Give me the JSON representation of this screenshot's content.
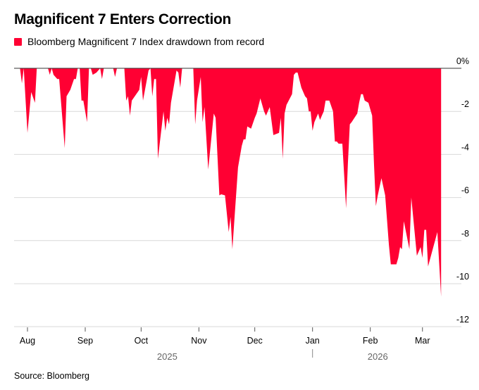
{
  "title": "Magnificent 7 Enters Correction",
  "legend_label": "Bloomberg Magnificent 7 Index drawdown from record",
  "source": "Source: Bloomberg",
  "colors": {
    "series": "#ff0033",
    "grid": "#d9d9d9",
    "zero_line": "#333333"
  },
  "chart_data": {
    "type": "area",
    "title": "Magnificent 7 Enters Correction",
    "series": [
      {
        "name": "Bloomberg Magnificent 7 Index drawdown from record",
        "color": "#ff0033"
      }
    ],
    "y_axis": {
      "position": "right",
      "range": [
        -12,
        0
      ],
      "ticks": [
        0,
        -2,
        -4,
        -6,
        -8,
        -10,
        -12
      ],
      "tick_labels": [
        "0%",
        "-2",
        "-4",
        "-6",
        "-8",
        "-10",
        "-12"
      ],
      "grid": true
    },
    "x_axis": {
      "type": "date",
      "range": [
        "2025-07-26",
        "2026-03-11"
      ],
      "ticks": [
        "2025-08-01",
        "2025-09-01",
        "2025-10-01",
        "2025-11-01",
        "2025-12-01",
        "2026-01-01",
        "2026-02-01",
        "2026-03-01"
      ],
      "tick_labels": [
        "Aug",
        "Sep",
        "Oct",
        "Nov",
        "Dec",
        "Jan",
        "Feb",
        "Mar"
      ],
      "year_labels": [
        {
          "label": "2025",
          "at": "2025-10-15"
        },
        {
          "label": "2026",
          "at": "2026-02-05"
        }
      ]
    },
    "points": [
      [
        "2025-07-26",
        0
      ],
      [
        "2025-07-28",
        0
      ],
      [
        "2025-07-29",
        -0.7
      ],
      [
        "2025-07-30",
        0
      ],
      [
        "2025-08-01",
        -3.0
      ],
      [
        "2025-08-03",
        -1.1
      ],
      [
        "2025-08-05",
        -1.6
      ],
      [
        "2025-08-06",
        0
      ],
      [
        "2025-08-12",
        0
      ],
      [
        "2025-08-13",
        -0.3
      ],
      [
        "2025-08-14",
        0
      ],
      [
        "2025-08-15",
        -0.3
      ],
      [
        "2025-08-17",
        -0.5
      ],
      [
        "2025-08-18",
        -0.5
      ],
      [
        "2025-08-21",
        -3.7
      ],
      [
        "2025-08-22",
        -1.3
      ],
      [
        "2025-08-24",
        -1.0
      ],
      [
        "2025-08-26",
        -0.5
      ],
      [
        "2025-08-27",
        -0.5
      ],
      [
        "2025-08-28",
        0
      ],
      [
        "2025-08-29",
        0
      ],
      [
        "2025-08-30",
        -1.5
      ],
      [
        "2025-08-31",
        -1.5
      ],
      [
        "2025-09-02",
        -2.5
      ],
      [
        "2025-09-03",
        0
      ],
      [
        "2025-09-04",
        0
      ],
      [
        "2025-09-05",
        -0.3
      ],
      [
        "2025-09-07",
        -0.2
      ],
      [
        "2025-09-09",
        0
      ],
      [
        "2025-09-10",
        -0.5
      ],
      [
        "2025-09-11",
        0
      ],
      [
        "2025-09-16",
        0
      ],
      [
        "2025-09-17",
        -0.4
      ],
      [
        "2025-09-18",
        0
      ],
      [
        "2025-09-22",
        0
      ],
      [
        "2025-09-23",
        -1.5
      ],
      [
        "2025-09-24",
        -1.3
      ],
      [
        "2025-09-25",
        -2.2
      ],
      [
        "2025-09-26",
        -1.5
      ],
      [
        "2025-09-30",
        -1.0
      ],
      [
        "2025-10-01",
        -0.4
      ],
      [
        "2025-10-02",
        -1.5
      ],
      [
        "2025-10-05",
        -0.1
      ],
      [
        "2025-10-06",
        0
      ],
      [
        "2025-10-07",
        -1.3
      ],
      [
        "2025-10-08",
        -0.5
      ],
      [
        "2025-10-09",
        -0.5
      ],
      [
        "2025-10-10",
        -4.2
      ],
      [
        "2025-10-13",
        -2.0
      ],
      [
        "2025-10-14",
        -2.9
      ],
      [
        "2025-10-15",
        -2.3
      ],
      [
        "2025-10-16",
        -2.6
      ],
      [
        "2025-10-17",
        -1.6
      ],
      [
        "2025-10-20",
        -0.1
      ],
      [
        "2025-10-21",
        -0.2
      ],
      [
        "2025-10-22",
        -0.9
      ],
      [
        "2025-10-23",
        0
      ],
      [
        "2025-10-29",
        0
      ],
      [
        "2025-10-30",
        -2.6
      ],
      [
        "2025-10-31",
        -1.5
      ],
      [
        "2025-11-02",
        -0.4
      ],
      [
        "2025-11-03",
        -2.5
      ],
      [
        "2025-11-04",
        -1.8
      ],
      [
        "2025-11-06",
        -4.7
      ],
      [
        "2025-11-09",
        -2.1
      ],
      [
        "2025-11-10",
        -2.3
      ],
      [
        "2025-11-12",
        -5.9
      ],
      [
        "2025-11-13",
        -5.85
      ],
      [
        "2025-11-15",
        -5.9
      ],
      [
        "2025-11-17",
        -7.6
      ],
      [
        "2025-11-18",
        -6.9
      ],
      [
        "2025-11-19",
        -8.4
      ],
      [
        "2025-11-20",
        -7.1
      ],
      [
        "2025-11-22",
        -4.6
      ],
      [
        "2025-11-24",
        -3.6
      ],
      [
        "2025-11-25",
        -3.3
      ],
      [
        "2025-11-26",
        -3.3
      ],
      [
        "2025-11-27",
        -2.7
      ],
      [
        "2025-11-29",
        -2.8
      ],
      [
        "2025-12-01",
        -2.3
      ],
      [
        "2025-12-02",
        -2.1
      ],
      [
        "2025-12-04",
        -1.4
      ],
      [
        "2025-12-06",
        -2.0
      ],
      [
        "2025-12-07",
        -2.2
      ],
      [
        "2025-12-09",
        -1.8
      ],
      [
        "2025-12-11",
        -3.1
      ],
      [
        "2025-12-14",
        -3.0
      ],
      [
        "2025-12-15",
        -2.3
      ],
      [
        "2025-12-16",
        -4.2
      ],
      [
        "2025-12-17",
        -2.1
      ],
      [
        "2025-12-18",
        -1.7
      ],
      [
        "2025-12-21",
        -1.2
      ],
      [
        "2025-12-22",
        -0.3
      ],
      [
        "2025-12-23",
        -0.2
      ],
      [
        "2025-12-24",
        -0.2
      ],
      [
        "2025-12-26",
        -0.9
      ],
      [
        "2025-12-28",
        -1.3
      ],
      [
        "2025-12-29",
        -1.4
      ],
      [
        "2025-12-30",
        -2.0
      ],
      [
        "2025-12-31",
        -2.0
      ],
      [
        "2026-01-01",
        -2.9
      ],
      [
        "2026-01-02",
        -2.5
      ],
      [
        "2026-01-04",
        -2.1
      ],
      [
        "2026-01-05",
        -2.4
      ],
      [
        "2026-01-06",
        -2.2
      ],
      [
        "2026-01-07",
        -2.0
      ],
      [
        "2026-01-08",
        -1.5
      ],
      [
        "2026-01-10",
        -1.5
      ],
      [
        "2026-01-12",
        -2.0
      ],
      [
        "2026-01-13",
        -3.4
      ],
      [
        "2026-01-14",
        -3.4
      ],
      [
        "2026-01-15",
        -3.5
      ],
      [
        "2026-01-17",
        -3.5
      ],
      [
        "2026-01-19",
        -6.5
      ],
      [
        "2026-01-20",
        -4.4
      ],
      [
        "2026-01-21",
        -2.6
      ],
      [
        "2026-01-22",
        -2.5
      ],
      [
        "2026-01-25",
        -2.1
      ],
      [
        "2026-01-26",
        -1.6
      ],
      [
        "2026-01-27",
        -1.2
      ],
      [
        "2026-01-28",
        -1.2
      ],
      [
        "2026-01-29",
        -1.5
      ],
      [
        "2026-01-31",
        -1.6
      ],
      [
        "2026-02-02",
        -2.2
      ],
      [
        "2026-02-03",
        -4.5
      ],
      [
        "2026-02-04",
        -6.4
      ],
      [
        "2026-02-05",
        -5.9
      ],
      [
        "2026-02-07",
        -5.1
      ],
      [
        "2026-02-09",
        -5.9
      ],
      [
        "2026-02-11",
        -8.2
      ],
      [
        "2026-02-12",
        -9.1
      ],
      [
        "2026-02-15",
        -9.1
      ],
      [
        "2026-02-16",
        -8.8
      ],
      [
        "2026-02-17",
        -8.3
      ],
      [
        "2026-02-18",
        -8.4
      ],
      [
        "2026-02-19",
        -7.1
      ],
      [
        "2026-02-22",
        -8.4
      ],
      [
        "2026-02-23",
        -6.0
      ],
      [
        "2026-02-26",
        -8.7
      ],
      [
        "2026-02-28",
        -8.3
      ],
      [
        "2026-03-01",
        -8.8
      ],
      [
        "2026-03-02",
        -7.5
      ],
      [
        "2026-03-03",
        -7.5
      ],
      [
        "2026-03-04",
        -9.2
      ],
      [
        "2026-03-09",
        -7.6
      ],
      [
        "2026-03-11",
        -10.6
      ]
    ]
  }
}
